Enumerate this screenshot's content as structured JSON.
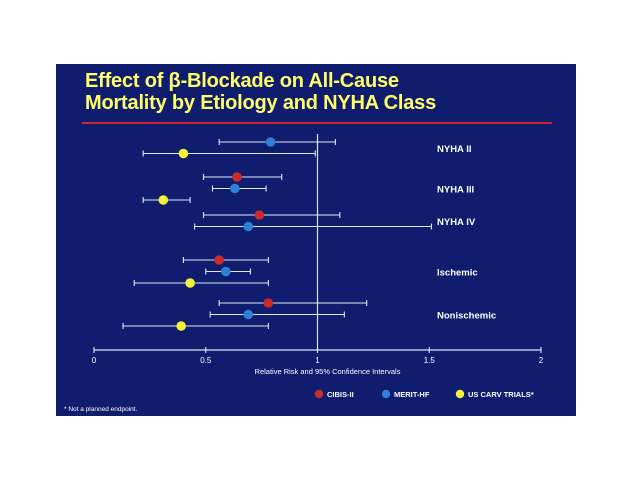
{
  "title_line1": "Effect of β-Blockade on All-Cause",
  "title_line2": "Mortality by Etiology and NYHA Class",
  "footnote": "* Not a planned endpoint.",
  "colors": {
    "background": "#101d6e",
    "title": "#ffff6a",
    "rule": "#cc2430",
    "axis": "#d7ecf2",
    "text": "#ffffff"
  },
  "chart_data": {
    "type": "scatter",
    "subtype": "forest-plot",
    "xlabel": "Relative Risk and 95% Confidence Intervals",
    "xlim": [
      0,
      2
    ],
    "xticks": [
      0,
      0.5,
      1,
      1.5,
      2
    ],
    "xtick_labels": [
      "0",
      "0.5",
      "1",
      "1.5",
      "2"
    ],
    "reference_line": 1,
    "legend_position": "bottom-right",
    "series": [
      {
        "name": "CIBIS-II",
        "color": "#cc2b2b"
      },
      {
        "name": "MERIT-HF",
        "color": "#2f7fd6"
      },
      {
        "name": "US CARV TRIALS*",
        "color": "#f2f23a"
      }
    ],
    "groups": [
      {
        "label": "NYHA II",
        "rows": [
          {
            "series": "MERIT-HF",
            "estimate": 0.79,
            "ci": [
              0.56,
              1.08
            ]
          },
          {
            "series": "US CARV TRIALS*",
            "estimate": 0.4,
            "ci": [
              0.22,
              0.99
            ]
          }
        ]
      },
      {
        "label": "NYHA III",
        "rows": [
          {
            "series": "CIBIS-II",
            "estimate": 0.64,
            "ci": [
              0.49,
              0.84
            ]
          },
          {
            "series": "MERIT-HF",
            "estimate": 0.63,
            "ci": [
              0.53,
              0.77
            ]
          },
          {
            "series": "US CARV TRIALS*",
            "estimate": 0.31,
            "ci": [
              0.22,
              0.43
            ]
          }
        ]
      },
      {
        "label": "NYHA IV",
        "rows": [
          {
            "series": "CIBIS-II",
            "estimate": 0.74,
            "ci": [
              0.49,
              1.1
            ]
          },
          {
            "series": "MERIT-HF",
            "estimate": 0.69,
            "ci": [
              0.45,
              1.51
            ]
          }
        ]
      },
      {
        "label": "Ischemic",
        "rows": [
          {
            "series": "CIBIS-II",
            "estimate": 0.56,
            "ci": [
              0.4,
              0.78
            ]
          },
          {
            "series": "MERIT-HF",
            "estimate": 0.59,
            "ci": [
              0.5,
              0.7
            ]
          },
          {
            "series": "US CARV TRIALS*",
            "estimate": 0.43,
            "ci": [
              0.18,
              0.78
            ]
          }
        ]
      },
      {
        "label": "Nonischemic",
        "rows": [
          {
            "series": "CIBIS-II",
            "estimate": 0.78,
            "ci": [
              0.56,
              1.22
            ]
          },
          {
            "series": "MERIT-HF",
            "estimate": 0.69,
            "ci": [
              0.52,
              1.12
            ]
          },
          {
            "series": "US CARV TRIALS*",
            "estimate": 0.39,
            "ci": [
              0.13,
              0.78
            ]
          }
        ]
      }
    ]
  }
}
